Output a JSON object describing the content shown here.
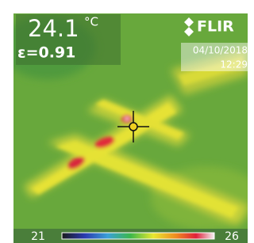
{
  "reading": {
    "temperature": 24.1,
    "unit": "°C",
    "emissivity": "ε=0.91"
  },
  "brand": "FLIR",
  "date": "04/10/2018",
  "time": "12:29",
  "scale": {
    "min": 21,
    "max": 26
  }
}
